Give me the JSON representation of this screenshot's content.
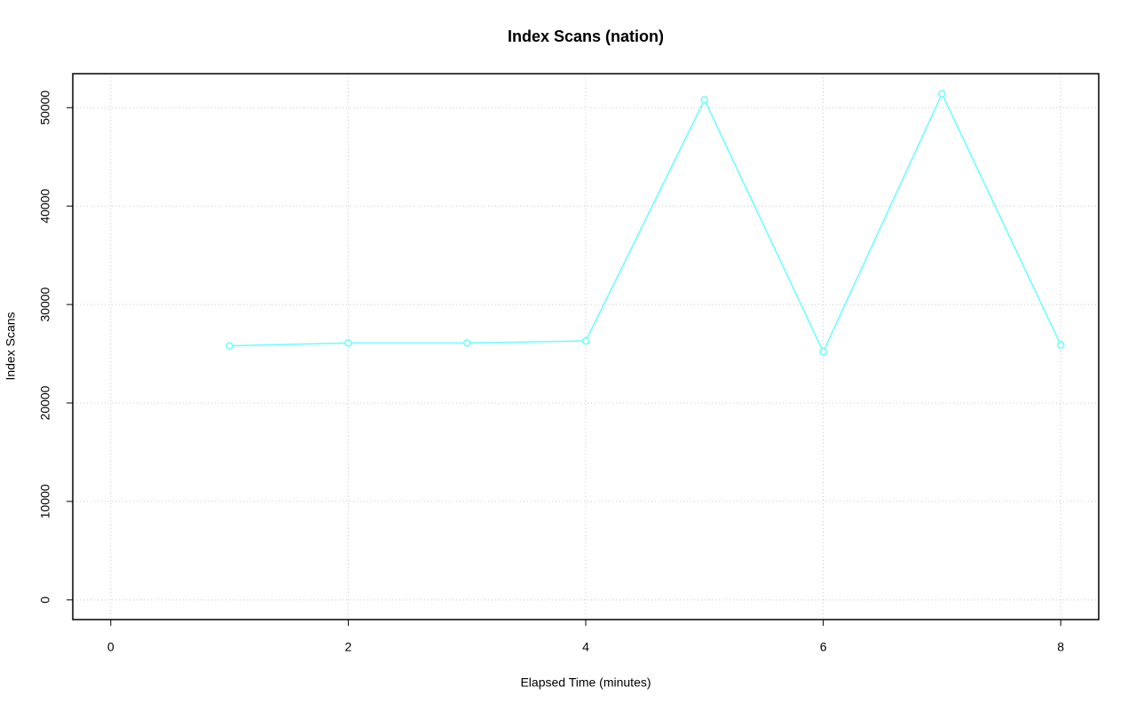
{
  "chart_data": {
    "type": "line",
    "title": "Index Scans (nation)",
    "x_label": "Elapsed Time (minutes)",
    "y_label": "Index Scans",
    "x": [
      1,
      2,
      3,
      4,
      5,
      6,
      7,
      8
    ],
    "series": [
      {
        "name": "Index Scans",
        "color": "#66ffff",
        "values": [
          25800,
          26100,
          26100,
          26300,
          50800,
          25200,
          51400,
          25900
        ]
      }
    ],
    "xlim": [
      -0.32,
      8.32
    ],
    "xticks": [
      0,
      2,
      4,
      6,
      8
    ],
    "ylim": [
      -2000,
      53450
    ],
    "yticks": [
      0,
      10000,
      20000,
      30000,
      40000,
      50000
    ],
    "grid": true
  }
}
